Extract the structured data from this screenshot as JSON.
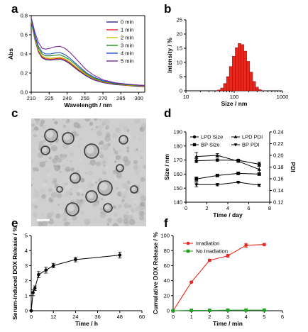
{
  "panels": {
    "a": "a",
    "b": "b",
    "c": "c",
    "d": "d",
    "e": "e",
    "f": "f"
  },
  "micrograph": {
    "description_icon": "tem-micrograph-image",
    "base_color": "#cfcfcf"
  },
  "chart_data": [
    {
      "panel": "a",
      "type": "line",
      "xlabel": "Wavelength / nm",
      "ylabel": "Abs",
      "xlim": [
        210,
        305
      ],
      "ylim": [
        0.0,
        0.8
      ],
      "xticks": [
        210,
        225,
        240,
        255,
        270,
        285,
        300
      ],
      "yticks": [
        0.0,
        0.2,
        0.4,
        0.6,
        0.8
      ],
      "legend_position": "top-right",
      "x": [
        210,
        213,
        216,
        219,
        222,
        226,
        230,
        234,
        238,
        242,
        246,
        250,
        256,
        262,
        270,
        280,
        290,
        300,
        305
      ],
      "series": [
        {
          "name": "0 min",
          "color": "#2a2a8a",
          "values": [
            0.74,
            0.55,
            0.42,
            0.36,
            0.34,
            0.335,
            0.34,
            0.345,
            0.33,
            0.3,
            0.26,
            0.22,
            0.17,
            0.13,
            0.1,
            0.08,
            0.07,
            0.06,
            0.06
          ]
        },
        {
          "name": "1 min",
          "color": "#e02020",
          "values": [
            0.75,
            0.56,
            0.43,
            0.37,
            0.35,
            0.345,
            0.35,
            0.355,
            0.34,
            0.31,
            0.27,
            0.23,
            0.18,
            0.14,
            0.105,
            0.085,
            0.072,
            0.065,
            0.062
          ]
        },
        {
          "name": "2 min",
          "color": "#c9c400",
          "values": [
            0.75,
            0.57,
            0.44,
            0.38,
            0.36,
            0.355,
            0.36,
            0.365,
            0.35,
            0.32,
            0.28,
            0.24,
            0.185,
            0.145,
            0.11,
            0.088,
            0.075,
            0.068,
            0.065
          ]
        },
        {
          "name": "3 min",
          "color": "#1e8a1e",
          "values": [
            0.76,
            0.58,
            0.46,
            0.4,
            0.38,
            0.38,
            0.385,
            0.39,
            0.37,
            0.34,
            0.3,
            0.255,
            0.195,
            0.15,
            0.115,
            0.09,
            0.078,
            0.07,
            0.067
          ]
        },
        {
          "name": "4 min",
          "color": "#1f4fd0",
          "values": [
            0.77,
            0.6,
            0.48,
            0.42,
            0.4,
            0.4,
            0.41,
            0.415,
            0.395,
            0.36,
            0.315,
            0.27,
            0.205,
            0.16,
            0.12,
            0.095,
            0.082,
            0.073,
            0.07
          ]
        },
        {
          "name": "5 min",
          "color": "#7a2aa0",
          "values": [
            0.78,
            0.63,
            0.52,
            0.46,
            0.45,
            0.46,
            0.475,
            0.48,
            0.46,
            0.42,
            0.37,
            0.315,
            0.235,
            0.18,
            0.13,
            0.1,
            0.085,
            0.075,
            0.072
          ]
        }
      ]
    },
    {
      "panel": "b",
      "type": "bar",
      "xlabel": "Size / nm",
      "ylabel": "Intensity / %",
      "xscale": "log",
      "xlim": [
        10,
        1000
      ],
      "ylim": [
        0,
        25
      ],
      "xticks": [
        10,
        100,
        1000
      ],
      "yticks": [
        0,
        5,
        10,
        15,
        20,
        25
      ],
      "bar_color": "#e8281e",
      "bins": [
        {
          "from": 45,
          "to": 52,
          "value": 0.3
        },
        {
          "from": 52,
          "to": 60,
          "value": 1.0
        },
        {
          "from": 60,
          "to": 69,
          "value": 2.6
        },
        {
          "from": 69,
          "to": 79,
          "value": 5.0
        },
        {
          "from": 79,
          "to": 91,
          "value": 8.6
        },
        {
          "from": 91,
          "to": 105,
          "value": 12.2
        },
        {
          "from": 105,
          "to": 120,
          "value": 15.2
        },
        {
          "from": 120,
          "to": 138,
          "value": 16.7
        },
        {
          "from": 138,
          "to": 159,
          "value": 16.3
        },
        {
          "from": 159,
          "to": 183,
          "value": 14.0
        },
        {
          "from": 183,
          "to": 210,
          "value": 10.4
        },
        {
          "from": 210,
          "to": 242,
          "value": 6.6
        },
        {
          "from": 242,
          "to": 278,
          "value": 3.3
        },
        {
          "from": 278,
          "to": 320,
          "value": 1.3
        },
        {
          "from": 320,
          "to": 368,
          "value": 0.4
        }
      ]
    },
    {
      "panel": "d",
      "type": "line",
      "xlabel": "Time / day",
      "ylabel": "Size / nm",
      "y2label": "PDI",
      "xlim": [
        0,
        8
      ],
      "ylim": [
        140,
        190
      ],
      "y2lim": [
        0.12,
        0.24
      ],
      "xticks": [
        0,
        2,
        4,
        6,
        8
      ],
      "yticks": [
        140,
        150,
        160,
        170,
        180,
        190
      ],
      "y2ticks": [
        0.12,
        0.14,
        0.16,
        0.18,
        0.2,
        0.22,
        0.24
      ],
      "legend_position": "top",
      "x": [
        1,
        3,
        5,
        7
      ],
      "series": [
        {
          "name": "LPD Size",
          "axis": "left",
          "marker": "circle",
          "values": [
            169.5,
            170.0,
            169.8,
            167.0
          ],
          "errors": [
            1.5,
            0.8,
            0.8,
            1.5
          ]
        },
        {
          "name": "BP Size",
          "axis": "left",
          "marker": "square",
          "values": [
            156.5,
            159.0,
            160.5,
            160.0
          ],
          "errors": [
            1.5,
            0.8,
            0.8,
            0.8
          ]
        },
        {
          "name": "LPD PDI",
          "axis": "right",
          "marker": "triangle-up",
          "values": [
            0.198,
            0.2,
            0.19,
            0.176
          ],
          "errors": [
            0.007,
            0.003,
            0.002,
            0.006
          ]
        },
        {
          "name": "BP PDI",
          "axis": "right",
          "marker": "triangle-down",
          "values": [
            0.15,
            0.15,
            0.154,
            0.149
          ],
          "errors": [
            0.004,
            0.002,
            0.001,
            0.002
          ]
        }
      ]
    },
    {
      "panel": "e",
      "type": "line",
      "xlabel": "Time / h",
      "ylabel": "Serum-induced DOX Release / %",
      "xlim": [
        0,
        60
      ],
      "ylim": [
        0,
        5
      ],
      "xticks": [
        0,
        12,
        24,
        36,
        48,
        60
      ],
      "yticks": [
        0,
        1,
        2,
        3,
        4,
        5
      ],
      "x": [
        0,
        1,
        2,
        4,
        8,
        12,
        24,
        48
      ],
      "series": [
        {
          "values": [
            0,
            1.2,
            1.5,
            2.4,
            2.7,
            3.0,
            3.4,
            3.7
          ],
          "errors": [
            0,
            0.2,
            0.15,
            0.2,
            0.2,
            0.15,
            0.15,
            0.2
          ]
        }
      ]
    },
    {
      "panel": "f",
      "type": "line",
      "xlabel": "Time / min",
      "ylabel": "Cumulative DOX Release / %",
      "xlim": [
        0,
        6
      ],
      "ylim": [
        0,
        100
      ],
      "xticks": [
        0,
        1,
        2,
        3,
        4,
        5,
        6
      ],
      "yticks": [
        0,
        20,
        40,
        60,
        80,
        100
      ],
      "legend_position": "top-left",
      "x": [
        0,
        1,
        2,
        3,
        4,
        5
      ],
      "series": [
        {
          "name": "Irradiation",
          "color": "#e8281e",
          "marker": "circle",
          "values": [
            0,
            38,
            67,
            73,
            87,
            88
          ],
          "errors": [
            0,
            1,
            1.5,
            2,
            2.5,
            1.5
          ]
        },
        {
          "name": "No Irradiation",
          "color": "#22a022",
          "marker": "square",
          "values": [
            0,
            0.5,
            0.5,
            0.8,
            0.8,
            0.8
          ],
          "errors": [
            0,
            0.3,
            0.3,
            0.3,
            0.3,
            0.3
          ]
        }
      ]
    }
  ]
}
